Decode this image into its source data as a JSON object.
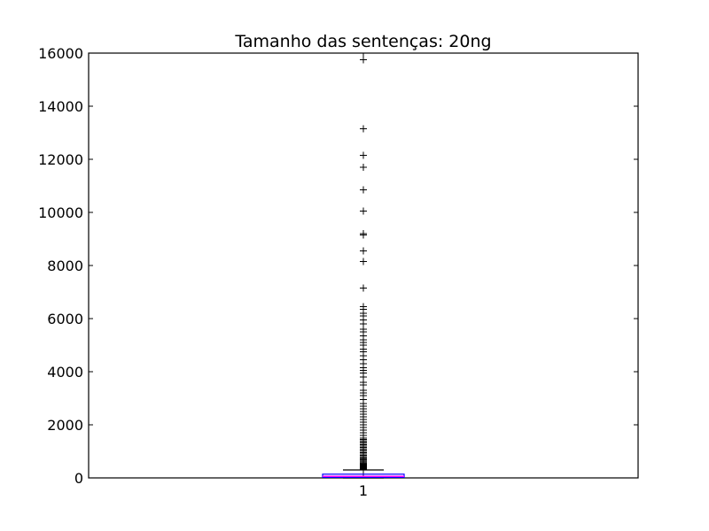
{
  "chart_data": {
    "type": "boxplot",
    "title": "Tamanho das sentenças: 20ng",
    "xlabel": "",
    "ylabel": "",
    "ylim": [
      0,
      16000
    ],
    "yticks": [
      0,
      2000,
      4000,
      6000,
      8000,
      10000,
      12000,
      14000,
      16000
    ],
    "ytick_labels": [
      "0",
      "2000",
      "4000",
      "6000",
      "8000",
      "10000",
      "12000",
      "14000",
      "16000"
    ],
    "categories": [
      "1"
    ],
    "grid": false,
    "box": {
      "q1": 20,
      "median": 60,
      "q3": 140,
      "whisker_low": 0,
      "whisker_high": 300
    },
    "outliers": [
      310,
      330,
      350,
      380,
      400,
      420,
      450,
      480,
      500,
      530,
      560,
      600,
      640,
      680,
      720,
      760,
      800,
      850,
      900,
      950,
      1000,
      1050,
      1100,
      1150,
      1200,
      1250,
      1300,
      1350,
      1400,
      1450,
      1500,
      1600,
      1700,
      1800,
      1900,
      2000,
      2100,
      2200,
      2300,
      2400,
      2500,
      2600,
      2700,
      2800,
      2950,
      3100,
      3200,
      3300,
      3500,
      3600,
      3800,
      3950,
      4050,
      4150,
      4300,
      4450,
      4600,
      4750,
      4850,
      5000,
      5100,
      5200,
      5350,
      5500,
      5600,
      5800,
      5950,
      6100,
      6200,
      6350,
      6450,
      7150,
      8150,
      8550,
      9150,
      9200,
      10050,
      10850,
      11700,
      12150,
      13150,
      15750
    ],
    "colors": {
      "box": "#0000ff",
      "median": "#ff00ff",
      "whisker": "#000000",
      "outlier": "#000000",
      "axes": "#000000"
    }
  }
}
